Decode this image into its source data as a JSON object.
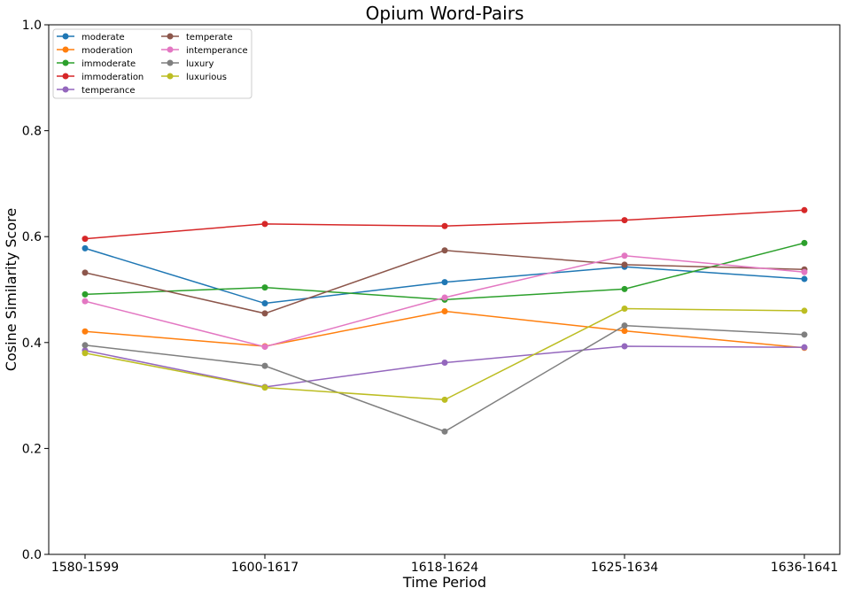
{
  "chart_data": {
    "type": "line",
    "title": "Opium Word-Pairs",
    "xlabel": "Time Period",
    "ylabel": "Cosine Similarity Score",
    "categories": [
      "1580-1599",
      "1600-1617",
      "1618-1624",
      "1625-1634",
      "1636-1641"
    ],
    "ylim": [
      0.0,
      1.0
    ],
    "yticks": [
      "0.0",
      "0.2",
      "0.4",
      "0.6",
      "0.8",
      "1.0"
    ],
    "ytick_values": [
      0.0,
      0.2,
      0.4,
      0.6,
      0.8,
      1.0
    ],
    "grid": false,
    "legend_position": "top-left",
    "legend_columns": 2,
    "series": [
      {
        "name": "moderate",
        "color": "#1f77b4",
        "values": [
          0.578,
          0.474,
          0.514,
          0.543,
          0.52
        ]
      },
      {
        "name": "moderation",
        "color": "#ff7f0e",
        "values": [
          0.421,
          0.393,
          0.459,
          0.422,
          0.39
        ]
      },
      {
        "name": "immoderate",
        "color": "#2ca02c",
        "values": [
          0.491,
          0.504,
          0.481,
          0.501,
          0.588
        ]
      },
      {
        "name": "immoderation",
        "color": "#d62728",
        "values": [
          0.596,
          0.624,
          0.62,
          0.631,
          0.65
        ]
      },
      {
        "name": "temperance",
        "color": "#9467bd",
        "values": [
          0.385,
          0.316,
          0.362,
          0.393,
          0.391
        ]
      },
      {
        "name": "temperate",
        "color": "#8c564b",
        "values": [
          0.532,
          0.455,
          0.574,
          0.547,
          0.538
        ]
      },
      {
        "name": "intemperance",
        "color": "#e377c2",
        "values": [
          0.478,
          0.392,
          0.485,
          0.564,
          0.533
        ]
      },
      {
        "name": "luxury",
        "color": "#7f7f7f",
        "values": [
          0.395,
          0.356,
          0.232,
          0.432,
          0.415
        ]
      },
      {
        "name": "luxurious",
        "color": "#bcbd22",
        "values": [
          0.38,
          0.315,
          0.292,
          0.464,
          0.46
        ]
      }
    ]
  }
}
